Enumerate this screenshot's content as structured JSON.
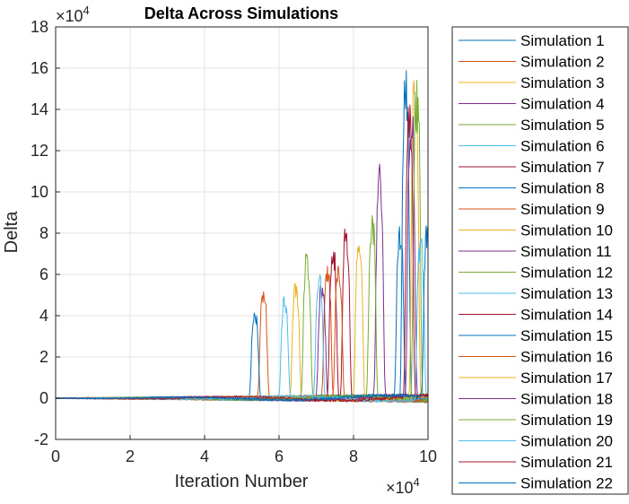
{
  "chart_data": {
    "type": "line",
    "title": "Delta Across Simulations",
    "xlabel": "Iteration Number",
    "ylabel": "Delta",
    "x_multiplier": "×10",
    "x_multiplier_exp": "4",
    "y_multiplier": "×10",
    "y_multiplier_exp": "4",
    "xlim": [
      0,
      100000
    ],
    "ylim": [
      -20000,
      180000
    ],
    "xticks": [
      0,
      20000,
      40000,
      60000,
      80000,
      100000
    ],
    "xtick_labels": [
      "0",
      "2",
      "4",
      "6",
      "8",
      "10"
    ],
    "yticks": [
      -20000,
      0,
      20000,
      40000,
      60000,
      80000,
      100000,
      120000,
      140000,
      160000,
      180000
    ],
    "ytick_labels": [
      "-2",
      "0",
      "2",
      "4",
      "6",
      "8",
      "10",
      "12",
      "14",
      "16",
      "18"
    ],
    "grid": true,
    "legend_position": "outside-right",
    "colors": [
      "#0072BD",
      "#D95319",
      "#EDB120",
      "#7E2F8E",
      "#77AC30",
      "#4DBEEE",
      "#A2142F"
    ],
    "series": [
      {
        "name": "Simulation 1",
        "spike_x": 94000,
        "spike_peak": 165000
      },
      {
        "name": "Simulation 2",
        "spike_x": 55800,
        "spike_peak": 53000
      },
      {
        "name": "Simulation 3",
        "spike_x": 64500,
        "spike_peak": 58000
      },
      {
        "name": "Simulation 4",
        "spike_x": 87000,
        "spike_peak": 113000
      },
      {
        "name": "Simulation 5",
        "spike_x": 85000,
        "spike_peak": 89000
      },
      {
        "name": "Simulation 6",
        "spike_x": 61500,
        "spike_peak": 50000
      },
      {
        "name": "Simulation 7",
        "spike_x": 78000,
        "spike_peak": 83000
      },
      {
        "name": "Simulation 8",
        "spike_x": 53500,
        "spike_peak": 43000
      },
      {
        "name": "Simulation 9",
        "spike_x": 73000,
        "spike_peak": 66000
      },
      {
        "name": "Simulation 10",
        "spike_x": 96500,
        "spike_peak": 157000
      },
      {
        "name": "Simulation 11",
        "spike_x": 71500,
        "spike_peak": 58000
      },
      {
        "name": "Simulation 12",
        "spike_x": 67500,
        "spike_peak": 70000
      },
      {
        "name": "Simulation 13",
        "spike_x": 70800,
        "spike_peak": 61000
      },
      {
        "name": "Simulation 14",
        "spike_x": 74500,
        "spike_peak": 76000
      },
      {
        "name": "Simulation 15",
        "spike_x": 92500,
        "spike_peak": 84000
      },
      {
        "name": "Simulation 16",
        "spike_x": 76000,
        "spike_peak": 65000
      },
      {
        "name": "Simulation 17",
        "spike_x": 81500,
        "spike_peak": 80000
      },
      {
        "name": "Simulation 18",
        "spike_x": 95500,
        "spike_peak": 145000
      },
      {
        "name": "Simulation 19",
        "spike_x": 97000,
        "spike_peak": 156000
      },
      {
        "name": "Simulation 20",
        "spike_x": 98000,
        "spike_peak": 80000
      },
      {
        "name": "Simulation 21",
        "spike_x": 95000,
        "spike_peak": 144000
      },
      {
        "name": "Simulation 22",
        "spike_x": 99800,
        "spike_peak": 84000
      }
    ]
  }
}
